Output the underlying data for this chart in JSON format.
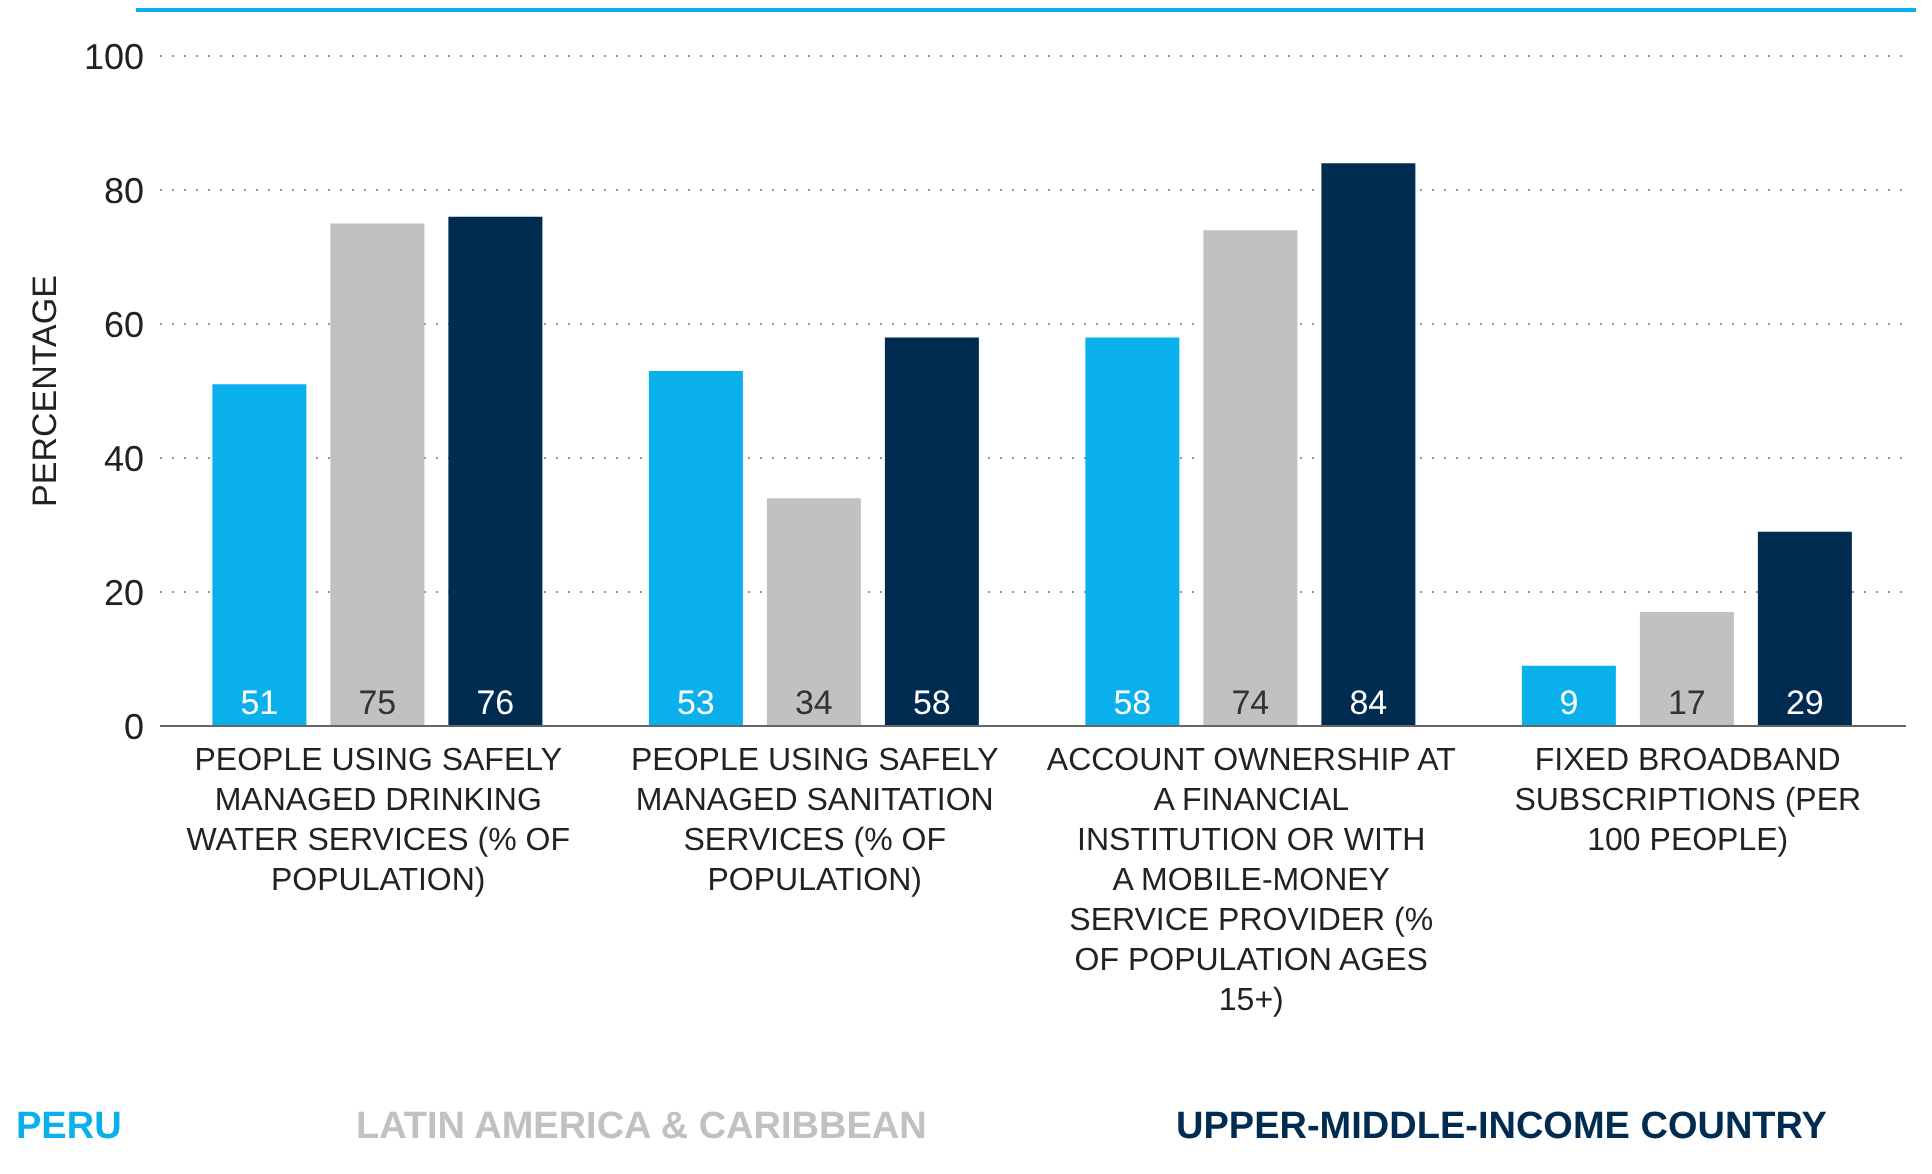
{
  "chart_data": {
    "type": "bar",
    "ylabel": "PERCENTAGE",
    "categories": [
      "PEOPLE USING SAFELY MANAGED DRINKING WATER SERVICES (% OF POPULATION)",
      "PEOPLE USING SAFELY MANAGED SANITATION SERVICES (% OF POPULATION)",
      "ACCOUNT OWNERSHIP AT A FINANCIAL INSTITUTION OR WITH A MOBILE-MONEY SERVICE PROVIDER (% OF POPULATION AGES 15+)",
      "FIXED BROADBAND SUBSCRIPTIONS (PER 100 PEOPLE)"
    ],
    "series": [
      {
        "name": "PERU",
        "color": "#0ab0ec",
        "values": [
          51,
          53,
          58,
          9
        ]
      },
      {
        "name": "LATIN AMERICA & CARIBBEAN",
        "color": "#bfc1c3",
        "values": [
          75,
          34,
          74,
          17
        ]
      },
      {
        "name": "UPPER-MIDDLE-INCOME COUNTRY",
        "color": "#012c52",
        "values": [
          76,
          58,
          84,
          29
        ]
      }
    ],
    "ylim": [
      0,
      100
    ],
    "yticks": [
      0,
      20,
      40,
      60,
      80,
      100
    ],
    "grid": "y",
    "legend": "bottom",
    "data_labels": true
  }
}
